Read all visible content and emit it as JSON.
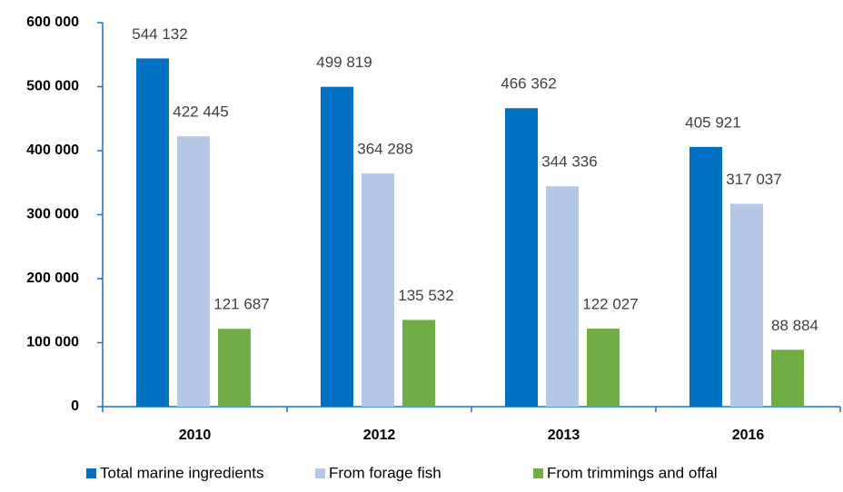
{
  "chart_data": {
    "type": "bar",
    "categories": [
      "2010",
      "2012",
      "2013",
      "2016"
    ],
    "series": [
      {
        "name": "Total marine ingredients",
        "color": "#0070c0",
        "values": [
          544132,
          499819,
          466362,
          405921
        ],
        "value_labels": [
          "544 132",
          "499 819",
          "466 362",
          "405 921"
        ]
      },
      {
        "name": "From forage fish",
        "color": "#b4c7e7",
        "values": [
          422445,
          364288,
          344336,
          317037
        ],
        "value_labels": [
          "422 445",
          "364 288",
          "344 336",
          "317 037"
        ]
      },
      {
        "name": "From trimmings and offal",
        "color": "#70ad47",
        "values": [
          121687,
          135532,
          122027,
          88884
        ],
        "value_labels": [
          "121 687",
          "135 532",
          "122 027",
          "88 884"
        ]
      }
    ],
    "ylim": [
      0,
      600000
    ],
    "yticks": [
      0,
      {
        "value": 100000,
        "label": "100 000"
      },
      {
        "value": 200000,
        "label": "200 000"
      },
      {
        "value": 300000,
        "label": "300 000"
      },
      {
        "value": 400000,
        "label": "400 000"
      },
      {
        "value": 500000,
        "label": "500 000"
      },
      {
        "value": 600000,
        "label": "600 000"
      }
    ],
    "legend": "bottom"
  }
}
